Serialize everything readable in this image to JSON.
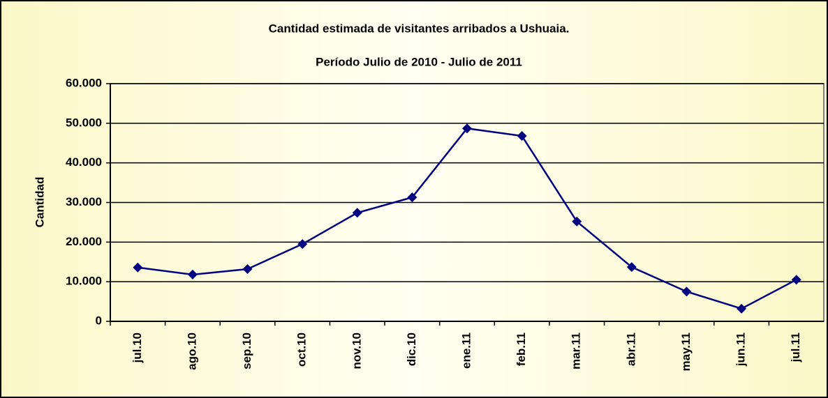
{
  "chart_data": {
    "type": "line",
    "title": "Cantidad estimada de visitantes arribados a Ushuaia.",
    "subtitle": "Período Julio de 2010 - Julio de 2011",
    "y_label": "Cantidad",
    "categories": [
      "jul.10",
      "ago.10",
      "sep.10",
      "oct.10",
      "nov.10",
      "dic.10",
      "ene.11",
      "feb.11",
      "mar.11",
      "abr.11",
      "may.11",
      "jun.11",
      "jul.11"
    ],
    "values": [
      13600,
      11800,
      13200,
      19500,
      27400,
      31300,
      48700,
      46800,
      25200,
      13700,
      7500,
      3200,
      10500
    ],
    "color": "#000080",
    "ylim": [
      0,
      60000
    ],
    "yticks": [
      0,
      {
        "value": 10000,
        "label": "10.000"
      },
      {
        "value": 20000,
        "label": "20.000"
      },
      {
        "value": 30000,
        "label": "30.000"
      },
      {
        "value": 40000,
        "label": "40.000"
      },
      {
        "value": 50000,
        "label": "50.000"
      },
      {
        "value": 60000,
        "label": "60.000"
      }
    ],
    "grid": true
  }
}
